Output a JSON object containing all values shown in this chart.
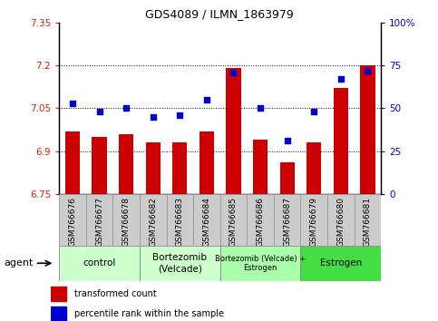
{
  "title": "GDS4089 / ILMN_1863979",
  "samples": [
    "GSM766676",
    "GSM766677",
    "GSM766678",
    "GSM766682",
    "GSM766683",
    "GSM766684",
    "GSM766685",
    "GSM766686",
    "GSM766687",
    "GSM766679",
    "GSM766680",
    "GSM766681"
  ],
  "bar_values": [
    6.97,
    6.95,
    6.96,
    6.93,
    6.93,
    6.97,
    7.19,
    6.94,
    6.86,
    6.93,
    7.12,
    7.2
  ],
  "dot_values": [
    53,
    48,
    50,
    45,
    46,
    55,
    71,
    50,
    31,
    48,
    67,
    72
  ],
  "ylim_left": [
    6.75,
    7.35
  ],
  "ylim_right": [
    0,
    100
  ],
  "yticks_left": [
    6.75,
    6.9,
    7.05,
    7.2,
    7.35
  ],
  "yticks_right": [
    0,
    25,
    50,
    75,
    100
  ],
  "ytick_labels_left": [
    "6.75",
    "6.9",
    "7.05",
    "7.2",
    "7.35"
  ],
  "ytick_labels_right": [
    "0",
    "25",
    "50",
    "75",
    "100%"
  ],
  "hlines": [
    6.9,
    7.05,
    7.2
  ],
  "bar_color": "#cc0000",
  "dot_color": "#0000cc",
  "bar_bottom": 6.75,
  "groups": [
    {
      "label": "control",
      "start": 0,
      "end": 3,
      "color": "#ccffcc"
    },
    {
      "label": "Bortezomib\n(Velcade)",
      "start": 3,
      "end": 6,
      "color": "#ccffcc"
    },
    {
      "label": "Bortezomib (Velcade) +\nEstrogen",
      "start": 6,
      "end": 9,
      "color": "#aaffaa"
    },
    {
      "label": "Estrogen",
      "start": 9,
      "end": 12,
      "color": "#44dd44"
    }
  ],
  "agent_label": "agent",
  "legend_bar_label": "transformed count",
  "legend_dot_label": "percentile rank within the sample",
  "tick_label_color_left": "#cc2200",
  "tick_label_color_right": "#0000cc",
  "cell_bg": "#cccccc",
  "cell_edge": "#999999"
}
